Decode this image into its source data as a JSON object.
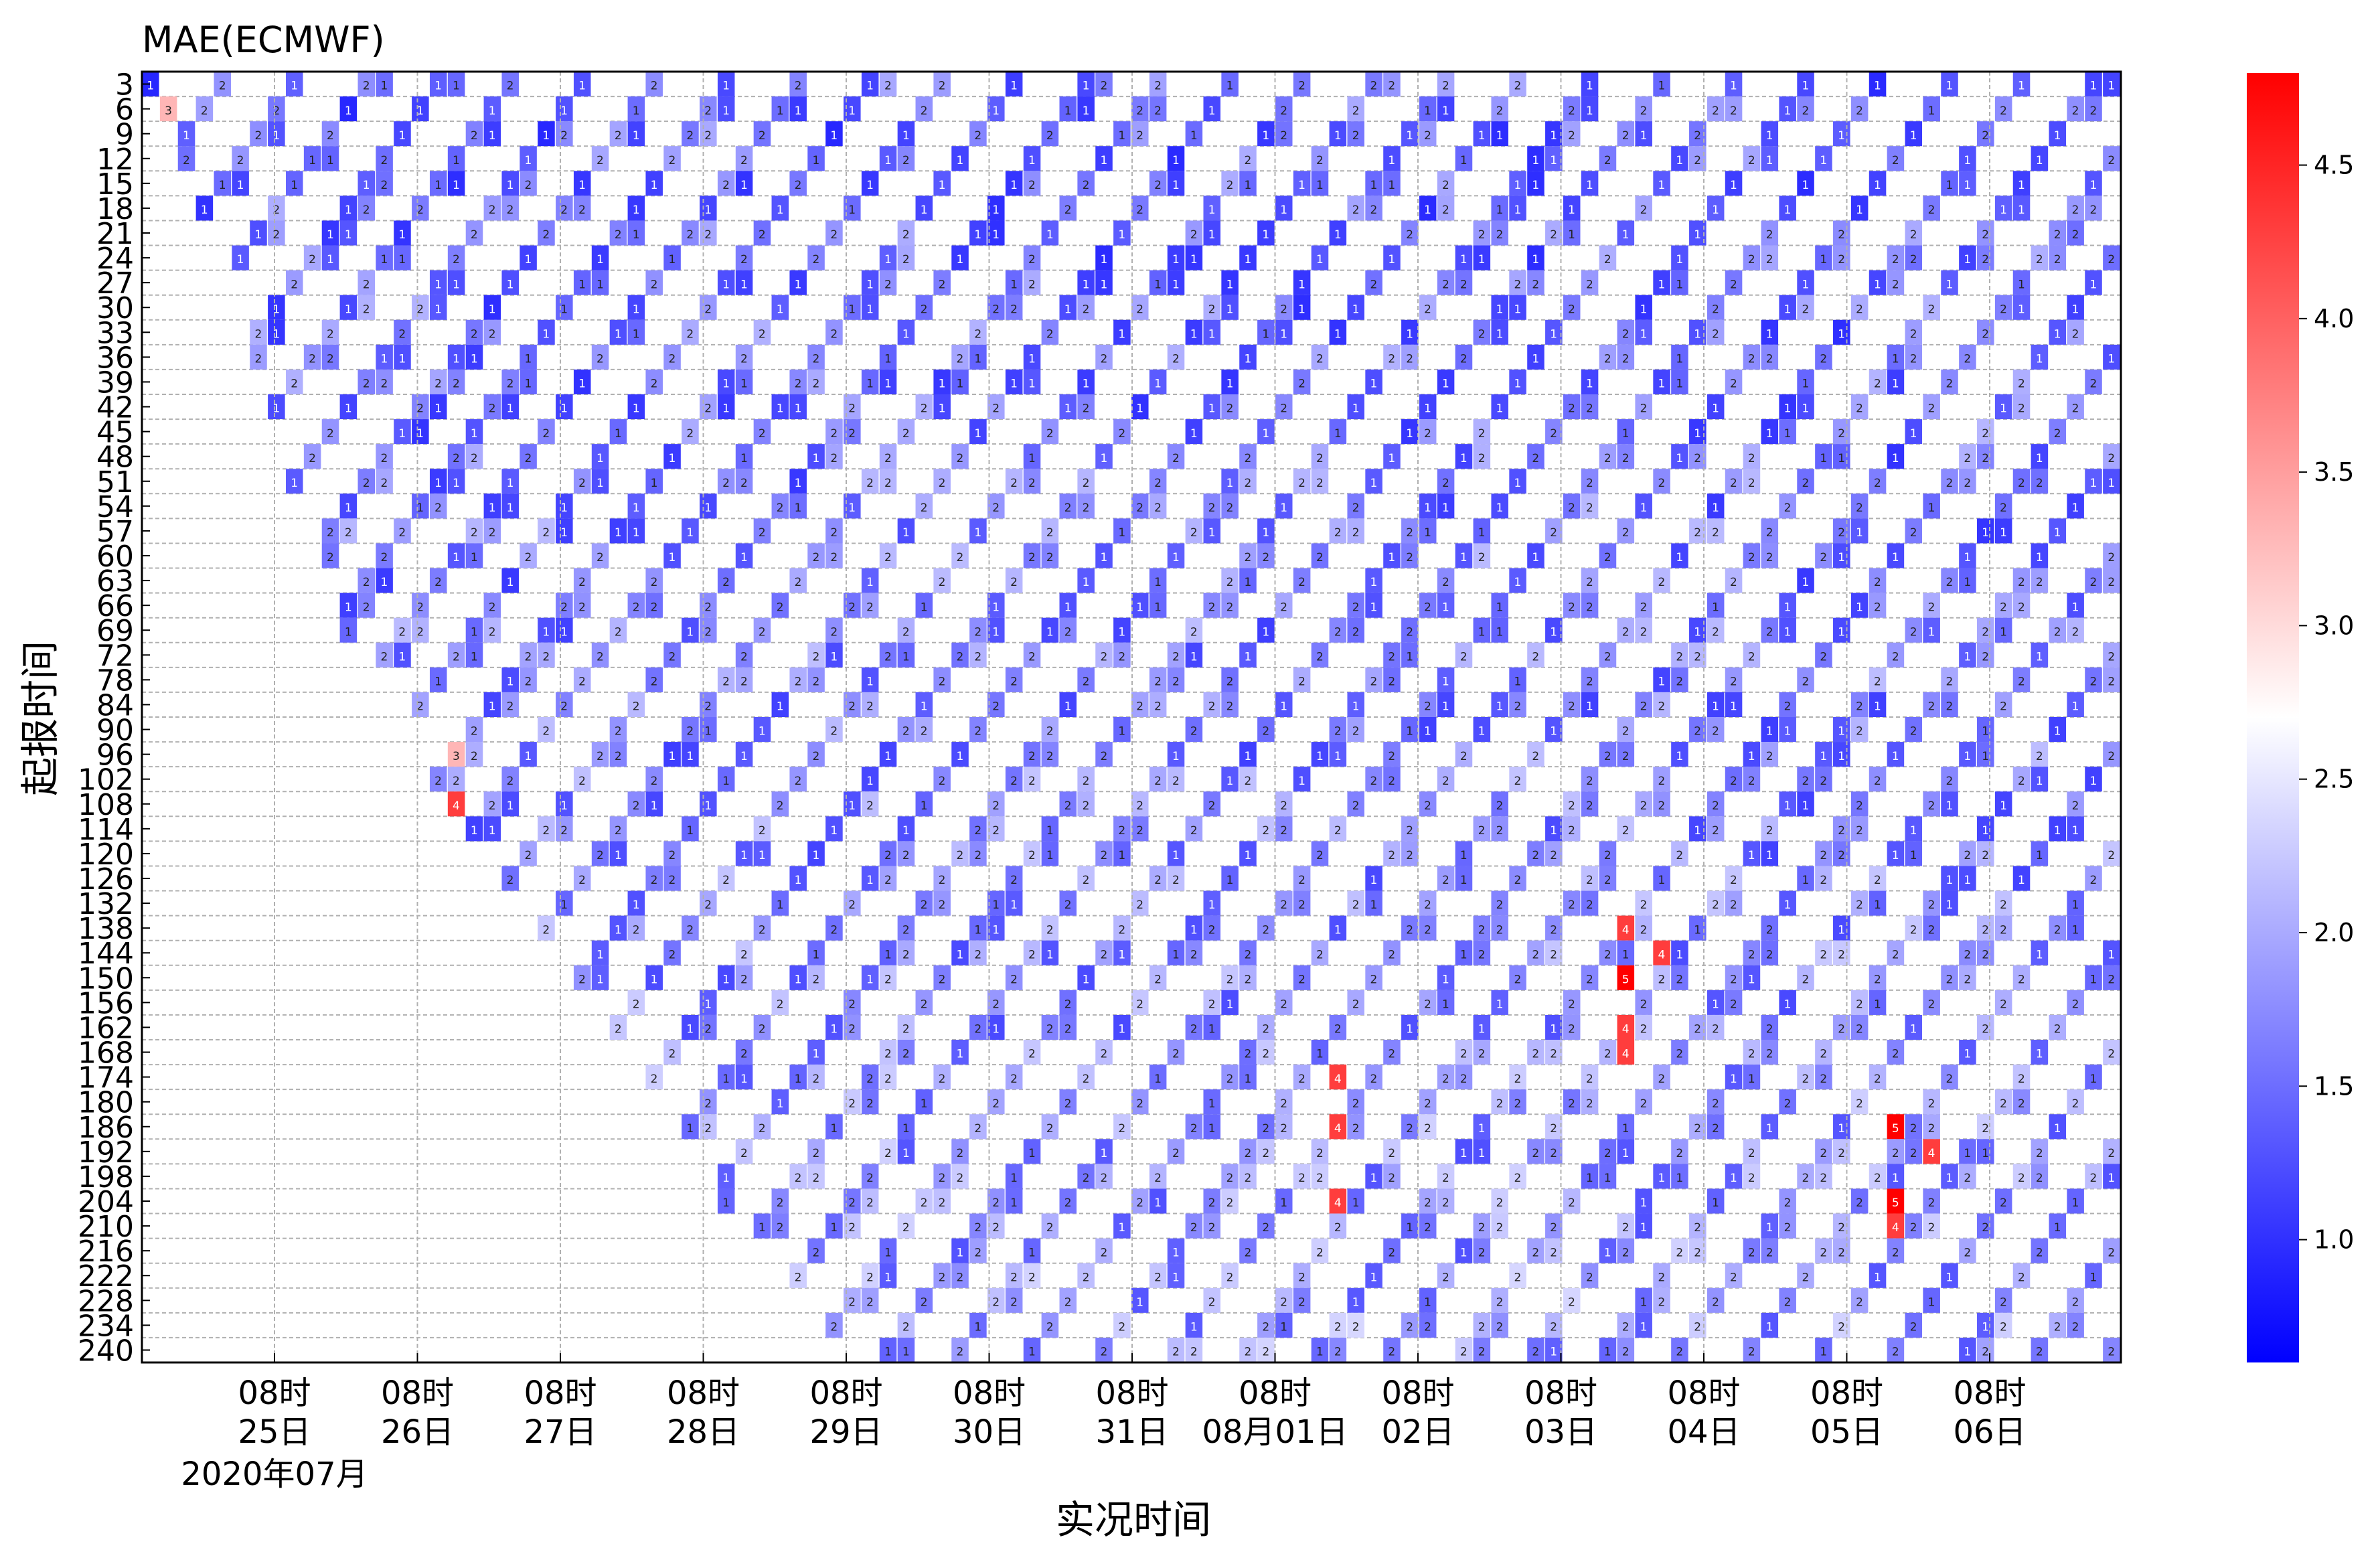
{
  "chart_data": {
    "type": "heatmap",
    "title": "MAE(ECMWF)",
    "xlabel": "实况时间",
    "ylabel": "起报时间",
    "x_tick_labels": [
      {
        "time": "08时",
        "date": "25日"
      },
      {
        "time": "08时",
        "date": "26日"
      },
      {
        "time": "08时",
        "date": "27日"
      },
      {
        "time": "08时",
        "date": "28日"
      },
      {
        "time": "08时",
        "date": "29日"
      },
      {
        "time": "08时",
        "date": "30日"
      },
      {
        "time": "08时",
        "date": "31日"
      },
      {
        "time": "08时",
        "date": "08月01日"
      },
      {
        "time": "08时",
        "date": "02日"
      },
      {
        "time": "08时",
        "date": "03日"
      },
      {
        "time": "08时",
        "date": "04日"
      },
      {
        "time": "08时",
        "date": "05日"
      },
      {
        "time": "08时",
        "date": "06日"
      }
    ],
    "x_year_label": "2020年07月",
    "y_leads": [
      3,
      6,
      9,
      12,
      15,
      18,
      21,
      24,
      27,
      30,
      33,
      36,
      39,
      42,
      45,
      48,
      51,
      54,
      57,
      60,
      63,
      66,
      69,
      72,
      78,
      84,
      90,
      96,
      102,
      108,
      114,
      120,
      126,
      132,
      138,
      144,
      150,
      156,
      162,
      168,
      174,
      180,
      186,
      192,
      198,
      204,
      210,
      216,
      222,
      228,
      234,
      240
    ],
    "colorbar": {
      "min": 0.6,
      "max": 4.8,
      "ticks": [
        1.0,
        1.5,
        2.0,
        2.5,
        3.0,
        3.5,
        4.0,
        4.5
      ],
      "tick_labels": [
        "1.0",
        "1.5",
        "2.0",
        "2.5",
        "3.0",
        "3.5",
        "4.0",
        "4.5"
      ],
      "colormap": "bwr",
      "colors": {
        "low": "#0000ff",
        "mid": "#ffffff",
        "high": "#ff0000"
      }
    },
    "grid": true,
    "notes_hot_cells": [
      {
        "lead": 6,
        "value": 3
      },
      {
        "lead": 96,
        "value": 3
      },
      {
        "lead": 108,
        "value": 4
      },
      {
        "lead": 138,
        "value": 4
      },
      {
        "lead": 144,
        "value": 4
      },
      {
        "lead": 150,
        "value": 5
      },
      {
        "lead": 162,
        "value": 4
      },
      {
        "lead": 168,
        "value": 4
      },
      {
        "lead": 174,
        "value": 4
      },
      {
        "lead": 186,
        "value": 4
      },
      {
        "lead": 186,
        "value": 5
      },
      {
        "lead": 192,
        "value": 4
      },
      {
        "lead": 204,
        "value": 4
      },
      {
        "lead": 204,
        "value": 5
      },
      {
        "lead": 210,
        "value": 4
      }
    ]
  }
}
